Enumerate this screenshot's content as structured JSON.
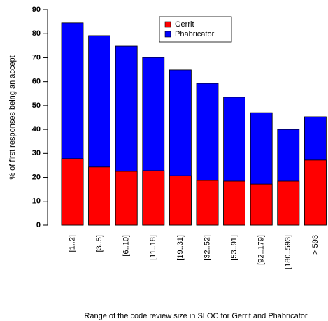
{
  "chart_data": {
    "type": "bar",
    "mode": "overlay",
    "x_label": "Range of the code review size in SLOC for Gerrit and Phabricator",
    "y_label": "% of first responses being an accept",
    "categories": [
      "[1..2]",
      "[3..5]",
      "[6..10]",
      "[11..18]",
      "[19..31]",
      "[32..52]",
      "[53..91]",
      "[92..179]",
      "[180..593]",
      "> 593"
    ],
    "series": [
      {
        "name": "Gerrit",
        "color": "#ff0000",
        "values": [
          27.8,
          24.3,
          22.5,
          22.8,
          20.7,
          18.7,
          18.4,
          17.2,
          18.4,
          27.2
        ]
      },
      {
        "name": "Phabricator",
        "color": "#0000ff",
        "values": [
          84.5,
          79.2,
          74.8,
          70.1,
          64.9,
          59.3,
          53.5,
          47.0,
          40.0,
          45.3
        ]
      }
    ],
    "ylim": [
      0,
      90
    ],
    "yticks": [
      0,
      10,
      20,
      30,
      40,
      50,
      60,
      70,
      80,
      90
    ],
    "legend": "top"
  }
}
